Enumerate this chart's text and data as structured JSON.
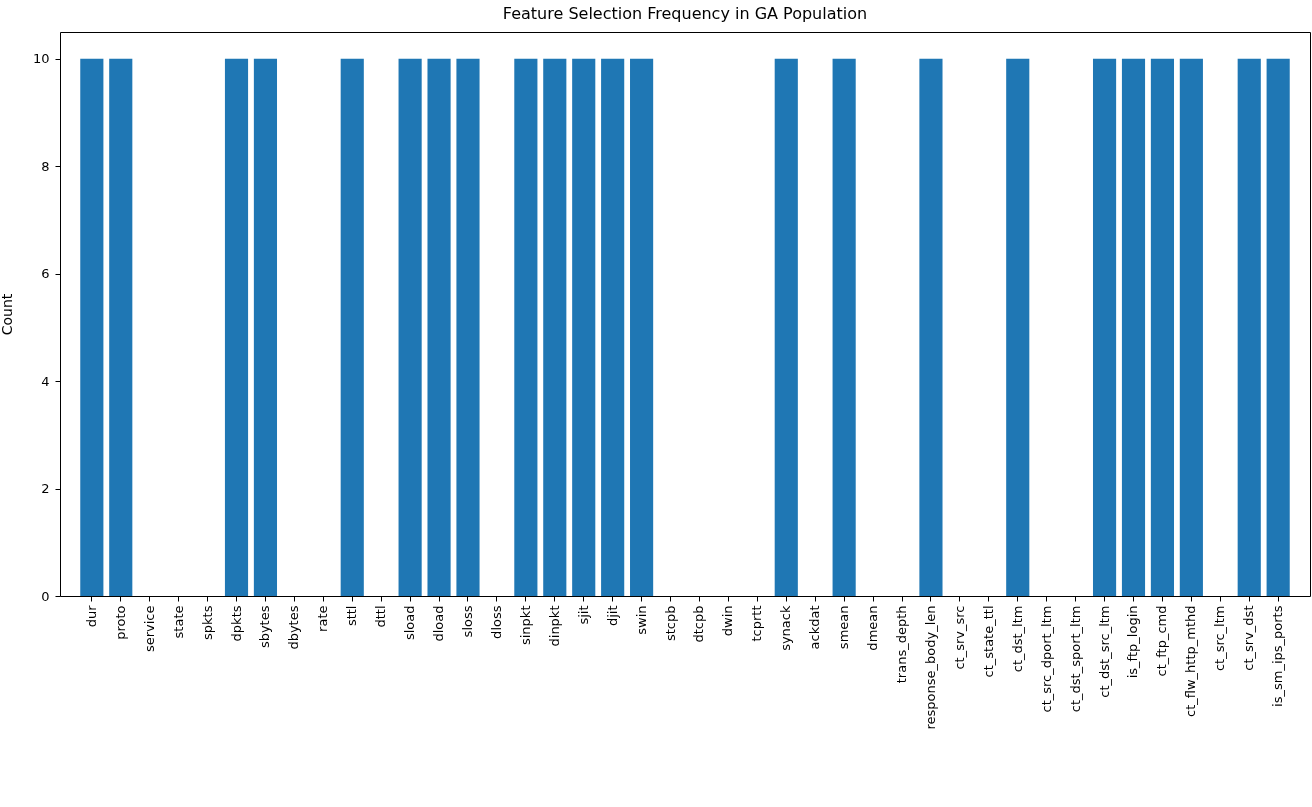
{
  "chart_data": {
    "type": "bar",
    "title": "Feature Selection Frequency in GA Population",
    "ylabel": "Count",
    "categories": [
      "dur",
      "proto",
      "service",
      "state",
      "spkts",
      "dpkts",
      "sbytes",
      "dbytes",
      "rate",
      "sttl",
      "dttl",
      "sload",
      "dload",
      "sloss",
      "dloss",
      "sinpkt",
      "dinpkt",
      "sjit",
      "djit",
      "swin",
      "stcpb",
      "dtcpb",
      "dwin",
      "tcprtt",
      "synack",
      "ackdat",
      "smean",
      "dmean",
      "trans_depth",
      "response_body_len",
      "ct_srv_src",
      "ct_state_ttl",
      "ct_dst_ltm",
      "ct_src_dport_ltm",
      "ct_dst_sport_ltm",
      "ct_dst_src_ltm",
      "is_ftp_login",
      "ct_ftp_cmd",
      "ct_flw_http_mthd",
      "ct_src_ltm",
      "ct_srv_dst",
      "is_sm_ips_ports"
    ],
    "values": [
      10,
      10,
      0,
      0,
      0,
      10,
      10,
      0,
      0,
      10,
      0,
      10,
      10,
      10,
      0,
      10,
      10,
      10,
      10,
      10,
      0,
      0,
      0,
      0,
      10,
      0,
      10,
      0,
      0,
      10,
      0,
      0,
      10,
      0,
      0,
      10,
      10,
      10,
      10,
      0,
      10,
      10
    ],
    "color": "#1f77b4",
    "ylim": [
      0,
      10.5
    ],
    "yticks": [
      0,
      2,
      4,
      6,
      8,
      10
    ],
    "grid": false
  }
}
